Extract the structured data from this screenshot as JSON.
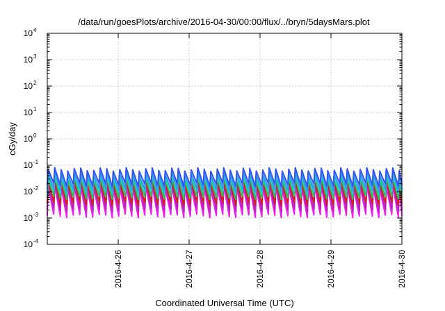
{
  "chart_data": {
    "type": "line",
    "title": "/data/run/goesPlots/archive/2016-04-30/00:00/flux/../bryn/5daysMars.plot",
    "xlabel": "Coordinated Universal Time (UTC)",
    "ylabel": "cGy/day",
    "xlim": [
      "2016-04-25T00:00",
      "2016-04-30T00:00"
    ],
    "ylim": [
      0.0001,
      10000
    ],
    "y_scale": "log",
    "grid": true,
    "legend": "none",
    "x_ticks": [
      {
        "value": "2016-04-26T00:00",
        "label": "2016-4-26"
      },
      {
        "value": "2016-04-27T00:00",
        "label": "2016-4-27"
      },
      {
        "value": "2016-04-28T00:00",
        "label": "2016-4-28"
      },
      {
        "value": "2016-04-29T00:00",
        "label": "2016-4-29"
      },
      {
        "value": "2016-04-30T00:00",
        "label": "2016-4-30"
      }
    ],
    "y_ticks": [
      {
        "value": 0.0001,
        "base": "10",
        "exp": "-4"
      },
      {
        "value": 0.001,
        "base": "10",
        "exp": "-3"
      },
      {
        "value": 0.01,
        "base": "10",
        "exp": "-2"
      },
      {
        "value": 0.1,
        "base": "10",
        "exp": "-1"
      },
      {
        "value": 1,
        "base": "10",
        "exp": "0"
      },
      {
        "value": 10,
        "base": "10",
        "exp": "1"
      },
      {
        "value": 100,
        "base": "10",
        "exp": "2"
      },
      {
        "value": 1000,
        "base": "10",
        "exp": "3"
      },
      {
        "value": 10000,
        "base": "10",
        "exp": "4"
      }
    ],
    "sawtooth_period_hours": 2.2,
    "series": [
      {
        "color": "#3355ee",
        "peak": 0.07,
        "trough": 0.018
      },
      {
        "color": "#3399ee",
        "peak": 0.05,
        "trough": 0.012
      },
      {
        "color": "#22cccc",
        "peak": 0.04,
        "trough": 0.009
      },
      {
        "color": "#33bb66",
        "peak": 0.03,
        "trough": 0.006
      },
      {
        "color": "#cc2222",
        "peak": 0.025,
        "trough": 0.0035
      },
      {
        "color": "#bb22bb",
        "peak": 0.02,
        "trough": 0.002
      },
      {
        "color": "#ee22ee",
        "peak": 0.015,
        "trough": 0.0012
      }
    ]
  }
}
